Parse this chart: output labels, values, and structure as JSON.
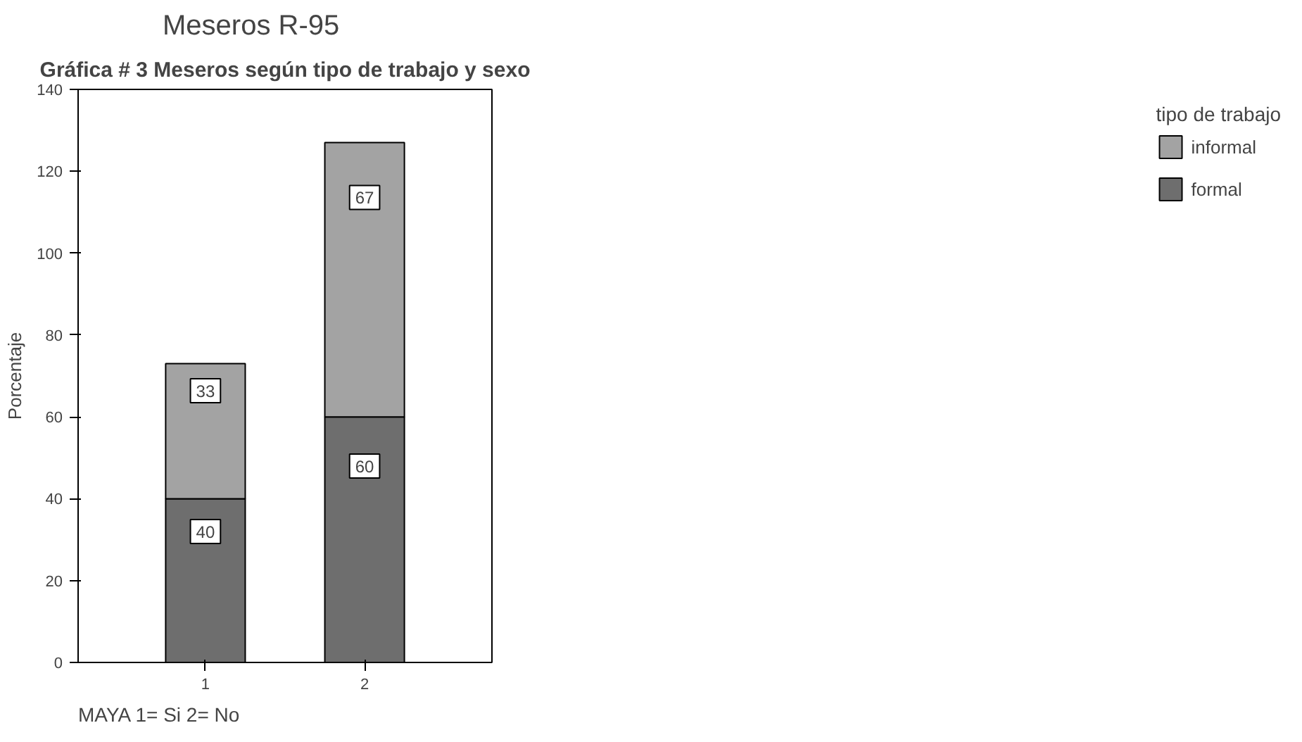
{
  "chart_data": {
    "type": "bar",
    "title": "Meseros R-95",
    "ylabel": "Porcentaje",
    "legend_title": "tipo de trabajo",
    "annotations": [
      "Gráfica # 3 Meseros según tipo de trabajo y sexo",
      "MAYA      1= Si   2= No"
    ],
    "categories": [
      "1",
      "2"
    ],
    "stacked": true,
    "series": [
      {
        "name": "formal",
        "color": "#6e6e6e",
        "values": [
          40,
          60
        ]
      },
      {
        "name": "informal",
        "color": "#a3a3a3",
        "values": [
          33,
          67
        ]
      }
    ],
    "ylim": [
      0,
      140
    ],
    "yticks": [
      0,
      20,
      40,
      60,
      80,
      100,
      120,
      140
    ],
    "grid": false,
    "legend": "right",
    "data_labels": true
  }
}
